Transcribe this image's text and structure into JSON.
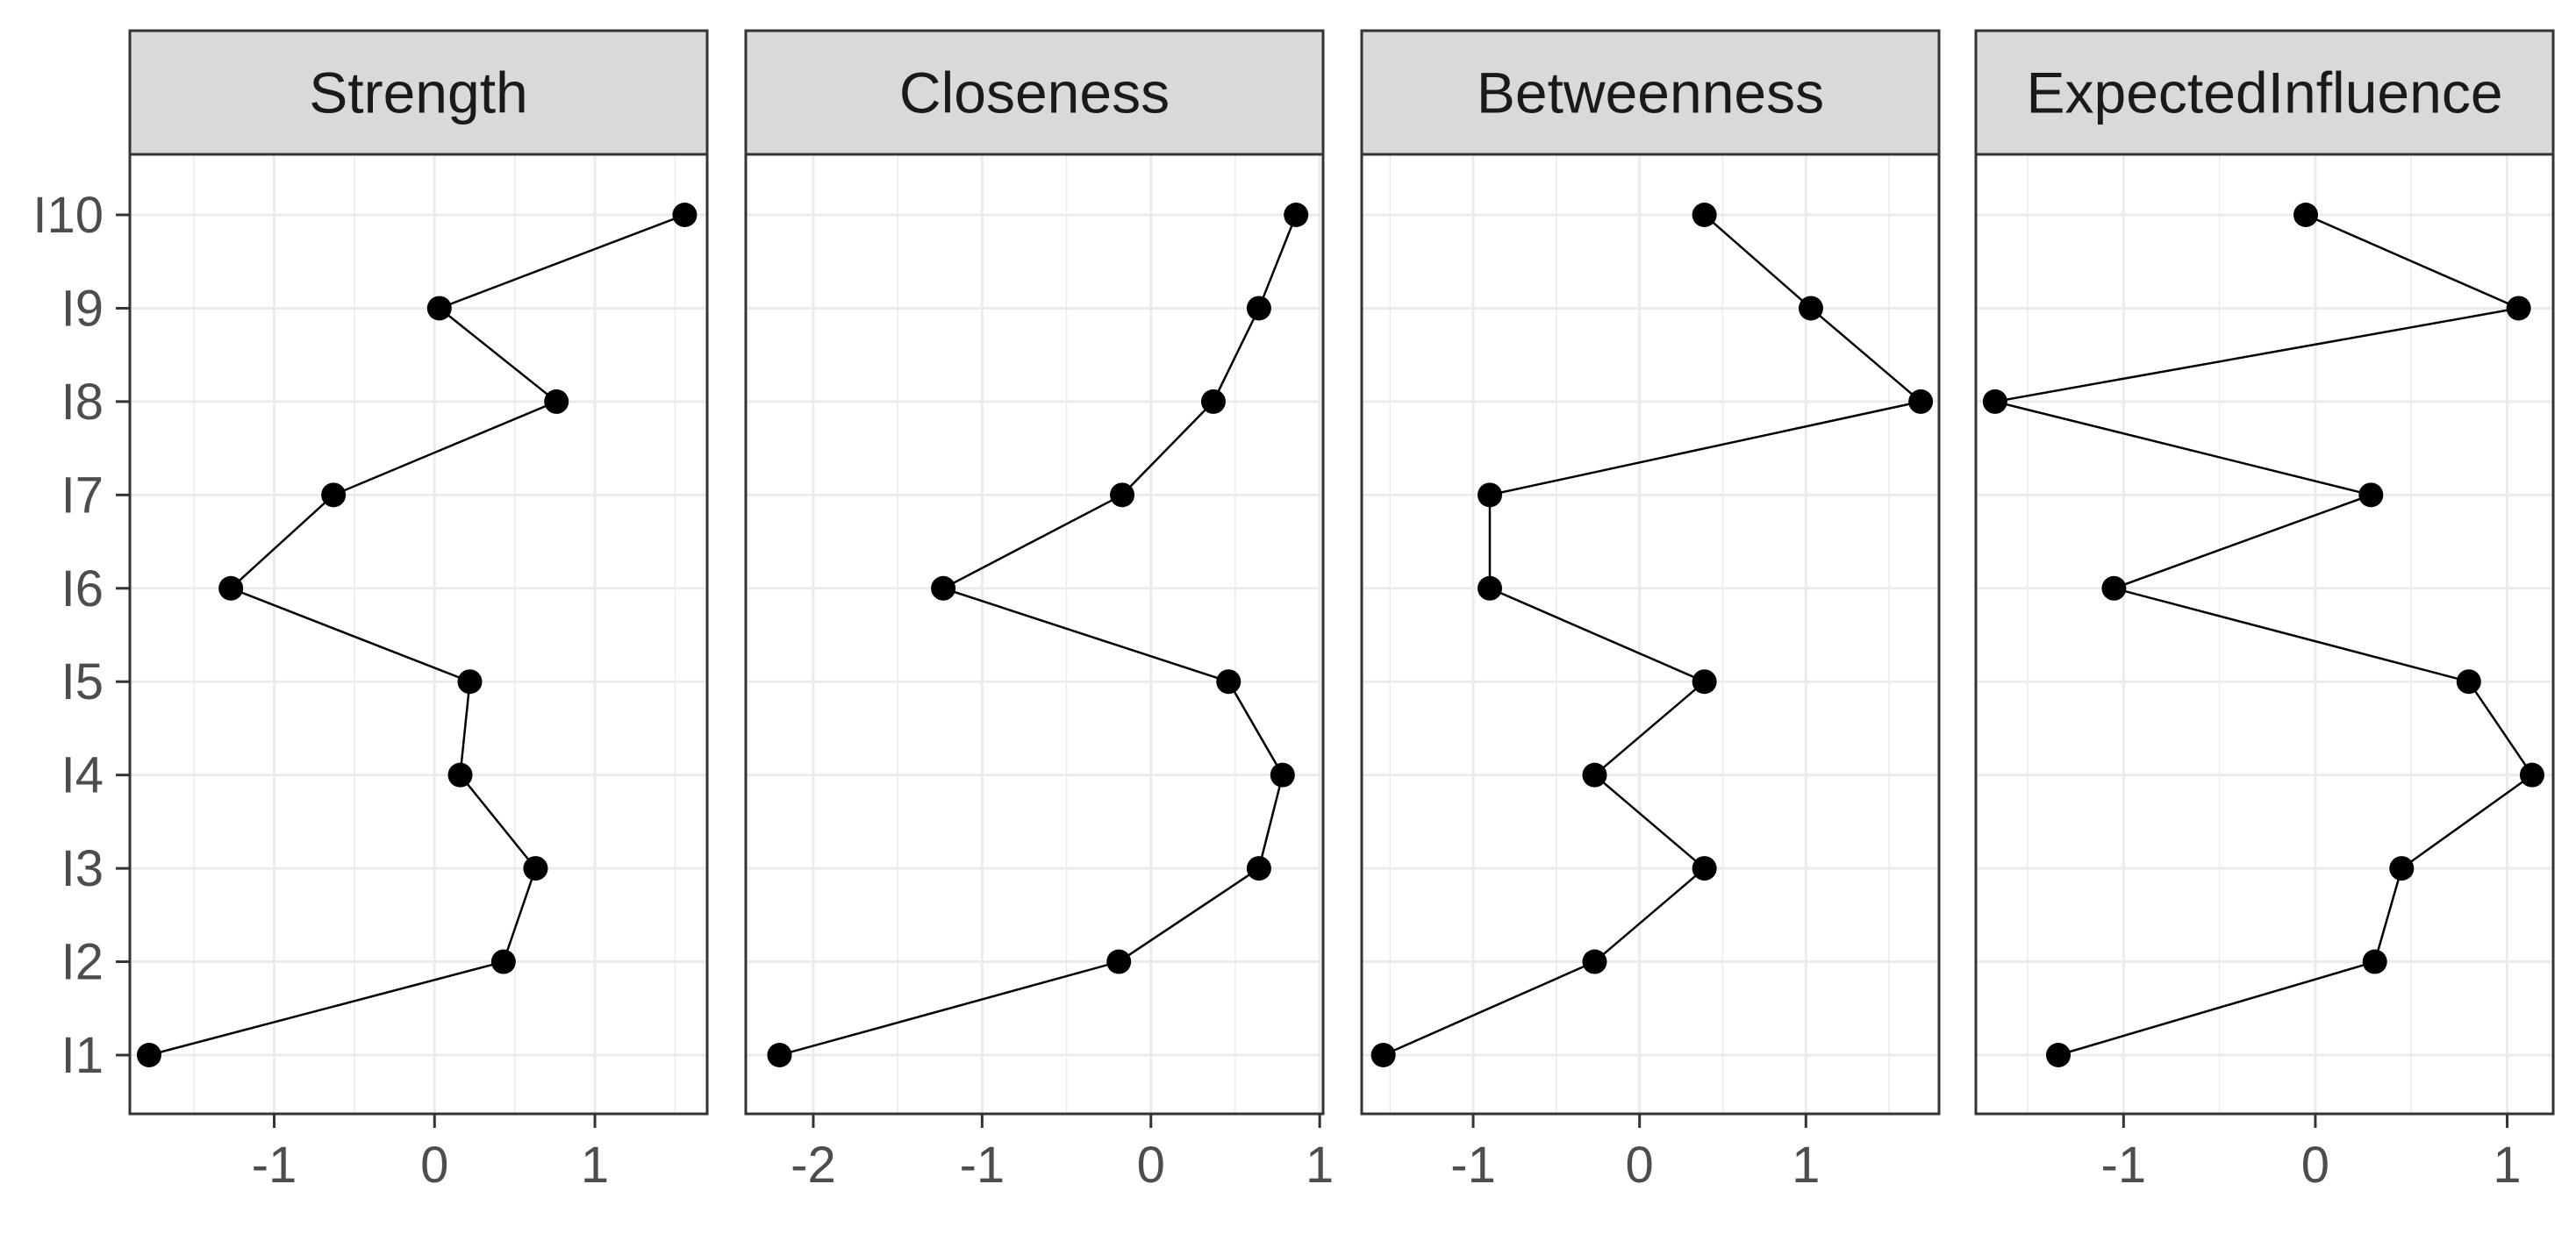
{
  "chart_data": {
    "type": "line",
    "layout": "faceted-columns",
    "y_categories": [
      "I1",
      "I2",
      "I3",
      "I4",
      "I5",
      "I6",
      "I7",
      "I8",
      "I9",
      "I10"
    ],
    "grid": true,
    "colors": {
      "strip_fill": "#d9d9d9",
      "panel_border": "#333333",
      "grid_major": "#ebebeb",
      "line": "#000000",
      "point": "#000000",
      "tick_text": "#4d4d4d",
      "strip_text": "#1a1a1a"
    },
    "panels": [
      {
        "title": "Strength",
        "xlim": [
          -1.9,
          1.7
        ],
        "x_ticks": [
          -1,
          0,
          1
        ],
        "x_tick_labels": [
          "-1",
          "0",
          "1"
        ],
        "values": [
          -1.78,
          0.43,
          0.63,
          0.16,
          0.22,
          -1.27,
          -0.63,
          0.76,
          0.03,
          1.56
        ]
      },
      {
        "title": "Closeness",
        "xlim": [
          -2.4,
          1.02
        ],
        "x_ticks": [
          -2,
          -1,
          0,
          1
        ],
        "x_tick_labels": [
          "-2",
          "-1",
          "0",
          "1"
        ],
        "values": [
          -2.2,
          -0.19,
          0.64,
          0.78,
          0.46,
          -1.23,
          -0.17,
          0.37,
          0.64,
          0.86
        ]
      },
      {
        "title": "Betweenness",
        "xlim": [
          -1.67,
          1.8
        ],
        "x_ticks": [
          -1,
          0,
          1
        ],
        "x_tick_labels": [
          "-1",
          "0",
          "1"
        ],
        "values": [
          -1.54,
          -0.27,
          0.39,
          -0.27,
          0.39,
          -0.9,
          -0.9,
          1.69,
          1.03,
          0.39
        ]
      },
      {
        "title": "ExpectedInfluence",
        "xlim": [
          -1.77,
          1.24
        ],
        "x_ticks": [
          -1,
          0,
          1
        ],
        "x_tick_labels": [
          "-1",
          "0",
          "1"
        ],
        "values": [
          -1.34,
          0.31,
          0.45,
          1.13,
          0.8,
          -1.05,
          0.29,
          -1.67,
          1.06,
          -0.05
        ]
      }
    ]
  }
}
